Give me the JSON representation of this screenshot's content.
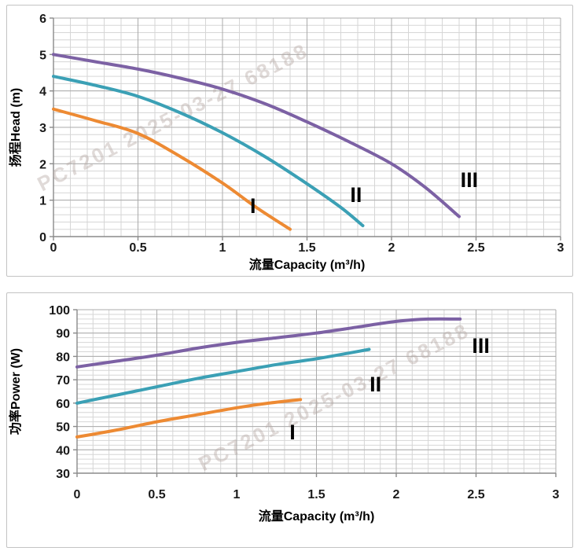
{
  "watermark": {
    "text": "PC7201 2025-03-27 68188"
  },
  "styles": {
    "grid_minor": "#d6d6d6",
    "grid_major": "#ababab",
    "axis": "#8a8a8a",
    "tick_label": "#1a1a1a",
    "axis_title": "#000000",
    "series_label": "#000000",
    "watermark": "#b5a8a2",
    "panel_border": "#c3c3c3",
    "series_I": "#ED8A33",
    "series_II": "#3BA0B5",
    "series_III": "#7C61A4"
  },
  "chart_data": [
    {
      "id": "head",
      "type": "line",
      "title": "",
      "xlabel": "流量Capacity (m³/h)",
      "ylabel": "扬程Head (m)",
      "xlim": [
        0,
        3
      ],
      "ylim": [
        0,
        6
      ],
      "xtick_values": [
        0,
        0.5,
        1,
        1.5,
        2,
        2.5,
        3
      ],
      "xtick_labels": [
        "0",
        "0.5",
        "1",
        "1.5",
        "2",
        "2.5",
        "3"
      ],
      "ytick_values": [
        0,
        1,
        2,
        3,
        4,
        5,
        6
      ],
      "ytick_labels": [
        "0",
        "1",
        "2",
        "3",
        "4",
        "5",
        "6"
      ],
      "x_minor_step": 0.1,
      "y_minor_step": 0.2,
      "grid": "major+minor",
      "legend_position": "none",
      "series": [
        {
          "name": "I",
          "color": "#ED8A33",
          "points": [
            [
              0,
              3.5
            ],
            [
              0.25,
              3.18
            ],
            [
              0.5,
              2.83
            ],
            [
              0.75,
              2.2
            ],
            [
              1,
              1.47
            ],
            [
              1.2,
              0.8
            ],
            [
              1.4,
              0.2
            ]
          ]
        },
        {
          "name": "II",
          "color": "#3BA0B5",
          "points": [
            [
              0,
              4.4
            ],
            [
              0.25,
              4.15
            ],
            [
              0.5,
              3.85
            ],
            [
              0.75,
              3.4
            ],
            [
              1,
              2.85
            ],
            [
              1.25,
              2.2
            ],
            [
              1.5,
              1.45
            ],
            [
              1.7,
              0.8
            ],
            [
              1.83,
              0.3
            ]
          ]
        },
        {
          "name": "III",
          "color": "#7C61A4",
          "points": [
            [
              0,
              5
            ],
            [
              0.25,
              4.8
            ],
            [
              0.5,
              4.6
            ],
            [
              0.75,
              4.35
            ],
            [
              1,
              4.05
            ],
            [
              1.25,
              3.65
            ],
            [
              1.5,
              3.15
            ],
            [
              1.75,
              2.6
            ],
            [
              2,
              2
            ],
            [
              2.2,
              1.35
            ],
            [
              2.4,
              0.55
            ]
          ]
        }
      ],
      "series_labels": [
        {
          "text": "I",
          "x": 1.18,
          "y": 0.84
        },
        {
          "text": "II",
          "x": 1.79,
          "y": 1.14
        },
        {
          "text": "III",
          "x": 2.46,
          "y": 1.55
        }
      ]
    },
    {
      "id": "power",
      "type": "line",
      "title": "",
      "xlabel": "流量Capacity (m³/h)",
      "ylabel": "功率Power (W)",
      "xlim": [
        0,
        3
      ],
      "ylim": [
        30,
        100
      ],
      "xtick_values": [
        0,
        0.5,
        1,
        1.5,
        2,
        2.5,
        3
      ],
      "xtick_labels": [
        "0",
        "0.5",
        "1",
        "1.5",
        "2",
        "2.5",
        "3"
      ],
      "ytick_values": [
        30,
        40,
        50,
        60,
        70,
        80,
        90,
        100
      ],
      "ytick_labels": [
        "30",
        "40",
        "50",
        "60",
        "70",
        "80",
        "90",
        "100"
      ],
      "x_minor_step": 0.1,
      "y_minor_step": 2,
      "grid": "major+minor",
      "legend_position": "none",
      "series": [
        {
          "name": "I",
          "color": "#ED8A33",
          "points": [
            [
              0,
              45.5
            ],
            [
              0.25,
              48.5
            ],
            [
              0.5,
              52
            ],
            [
              0.75,
              55
            ],
            [
              1,
              58
            ],
            [
              1.2,
              60
            ],
            [
              1.4,
              61.5
            ]
          ]
        },
        {
          "name": "II",
          "color": "#3BA0B5",
          "points": [
            [
              0,
              60
            ],
            [
              0.25,
              63.5
            ],
            [
              0.5,
              67
            ],
            [
              0.75,
              70.5
            ],
            [
              1,
              73.5
            ],
            [
              1.25,
              76.5
            ],
            [
              1.5,
              79
            ],
            [
              1.83,
              83
            ]
          ]
        },
        {
          "name": "III",
          "color": "#7C61A4",
          "points": [
            [
              0,
              75.5
            ],
            [
              0.25,
              78
            ],
            [
              0.5,
              80.5
            ],
            [
              0.75,
              83.5
            ],
            [
              1,
              86
            ],
            [
              1.25,
              88
            ],
            [
              1.5,
              90
            ],
            [
              1.75,
              92.5
            ],
            [
              2,
              95
            ],
            [
              2.2,
              96
            ],
            [
              2.4,
              96
            ]
          ]
        }
      ],
      "series_labels": [
        {
          "text": "I",
          "x": 1.35,
          "y": 47.5
        },
        {
          "text": "II",
          "x": 1.87,
          "y": 68
        },
        {
          "text": "III",
          "x": 2.53,
          "y": 84.5
        }
      ]
    }
  ]
}
